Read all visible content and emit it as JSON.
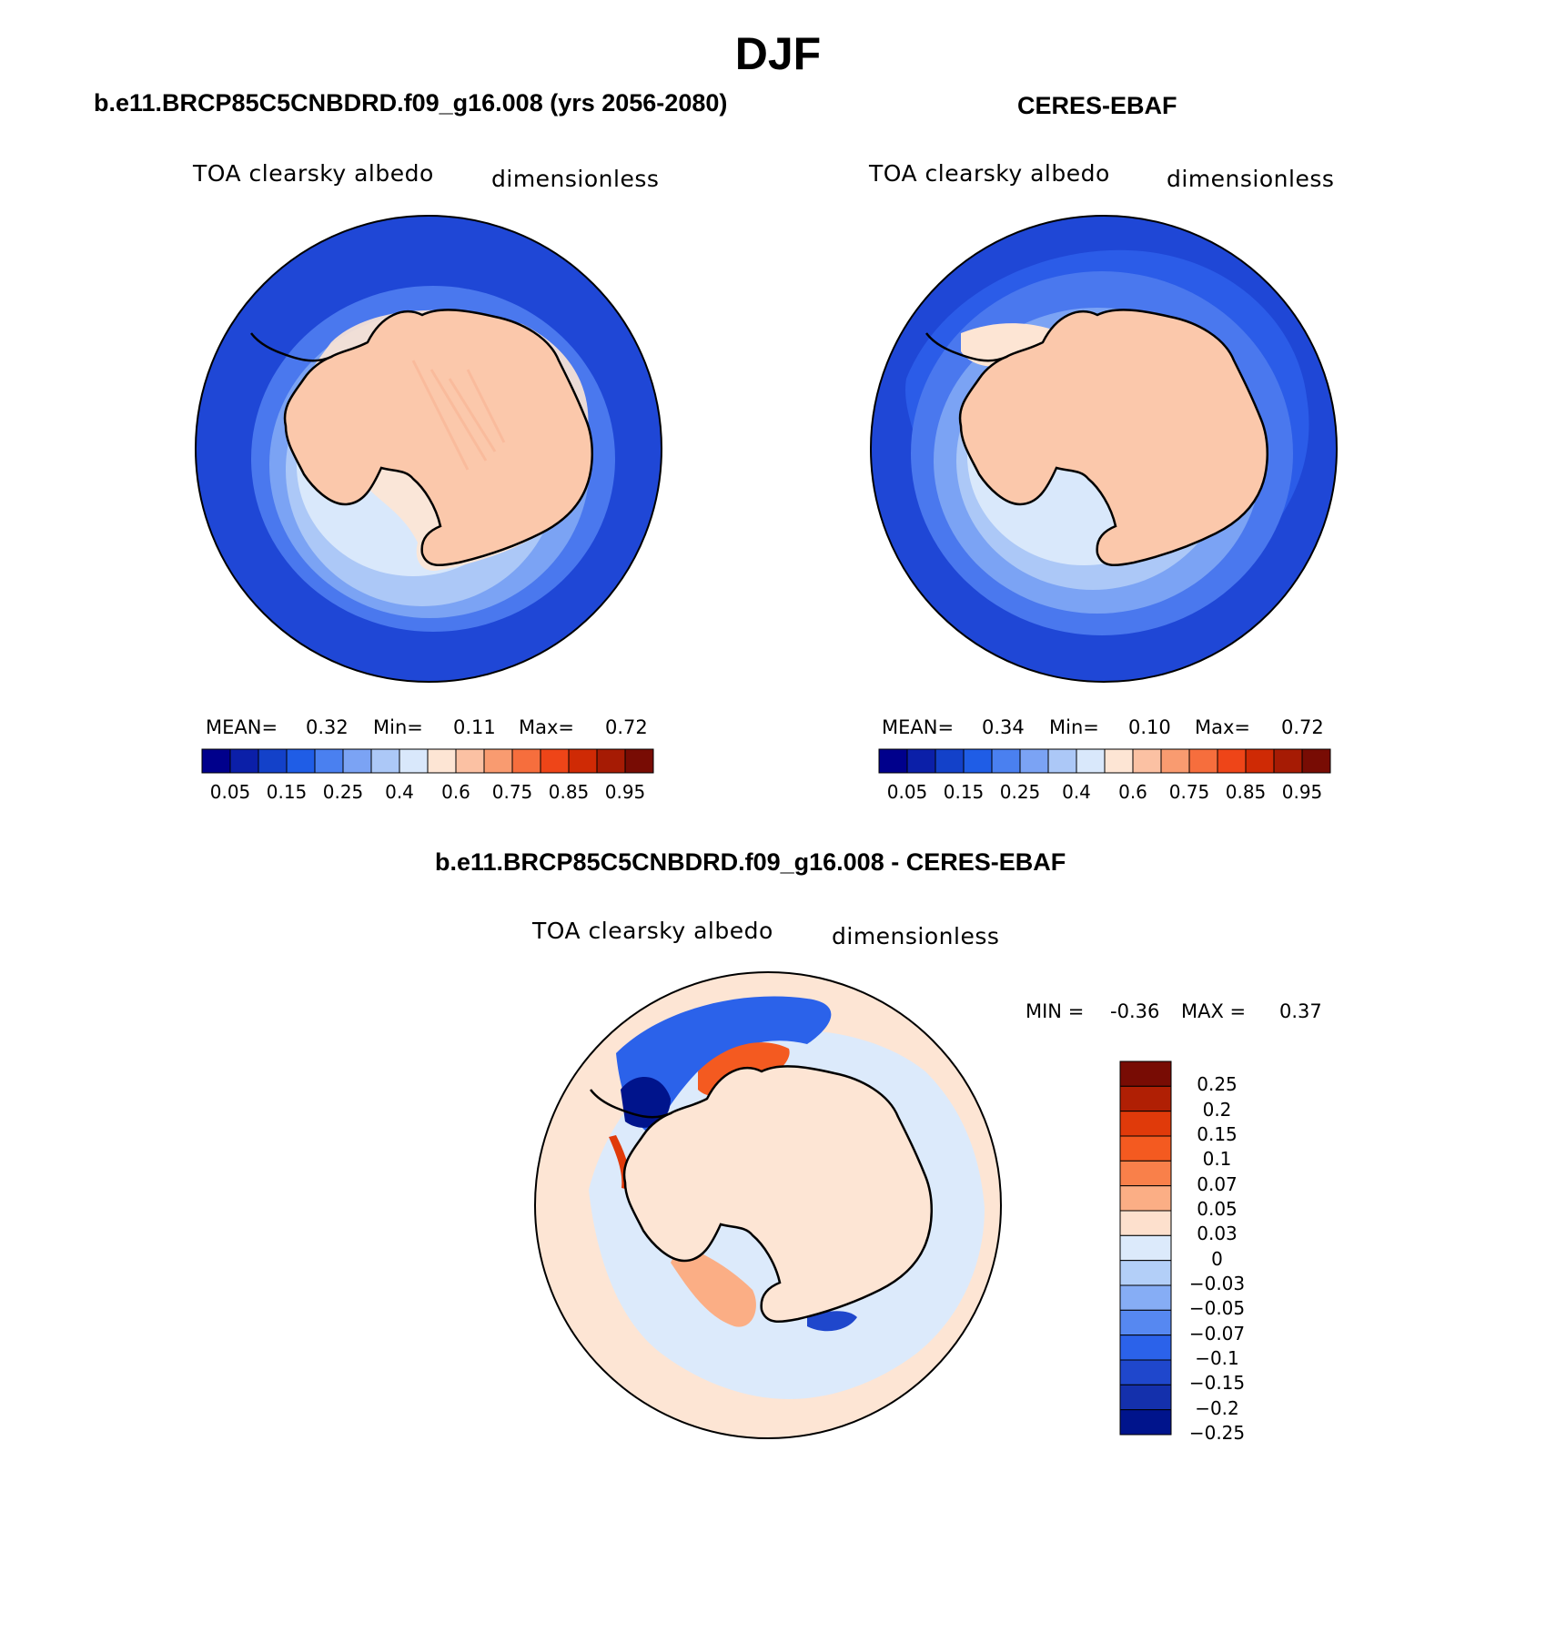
{
  "figure": {
    "title": "DJF"
  },
  "panels": [
    {
      "title": "b.e11.BRCP85C5CNBDRD.f09_g16.008 (yrs 2056-2080)",
      "variable": "TOA clearsky albedo",
      "units": "dimensionless",
      "stats": {
        "mean_label": "MEAN=",
        "mean": "0.32",
        "min_label": "Min=",
        "min": "0.11",
        "max_label": "Max=",
        "max": "0.72"
      }
    },
    {
      "title": "CERES-EBAF",
      "variable": "TOA clearsky albedo",
      "units": "dimensionless",
      "stats": {
        "mean_label": "MEAN=",
        "mean": "0.34",
        "min_label": "Min=",
        "min": "0.10",
        "max_label": "Max=",
        "max": "0.72"
      }
    },
    {
      "title": "b.e11.BRCP85C5CNBDRD.f09_g16.008 - CERES-EBAF",
      "variable": "TOA clearsky albedo",
      "units": "dimensionless",
      "stats": {
        "min_label": "MIN =",
        "min": "-0.36",
        "max_label": "MAX =",
        "max": "0.37"
      }
    }
  ],
  "colorbar_abs": {
    "colors": [
      "#00008c",
      "#0b1fa8",
      "#1341c9",
      "#1f5de6",
      "#4a80f0",
      "#7ba3f4",
      "#acc8f7",
      "#d9e8fb",
      "#fde5d4",
      "#fbc1a3",
      "#f99b70",
      "#f66e3d",
      "#ee4518",
      "#cf2a05",
      "#a61b04",
      "#780c04"
    ],
    "tick_labels": [
      "0.05",
      "0.15",
      "0.25",
      "0.4",
      "0.6",
      "0.75",
      "0.85",
      "0.95"
    ]
  },
  "colorbar_diff": {
    "colors_top_to_bottom": [
      "#780c04",
      "#b01f04",
      "#e03a0a",
      "#f45a20",
      "#f9804a",
      "#fbae85",
      "#fde0cd",
      "#dceafb",
      "#b3cff8",
      "#86adf5",
      "#5688f1",
      "#2b62ea",
      "#1f47cc",
      "#1430ac",
      "#00148c"
    ],
    "tick_labels": [
      "0.25",
      "0.2",
      "0.15",
      "0.1",
      "0.07",
      "0.05",
      "0.03",
      "0",
      "−0.03",
      "−0.05",
      "−0.07",
      "−0.1",
      "−0.15",
      "−0.2",
      "−0.25"
    ]
  }
}
